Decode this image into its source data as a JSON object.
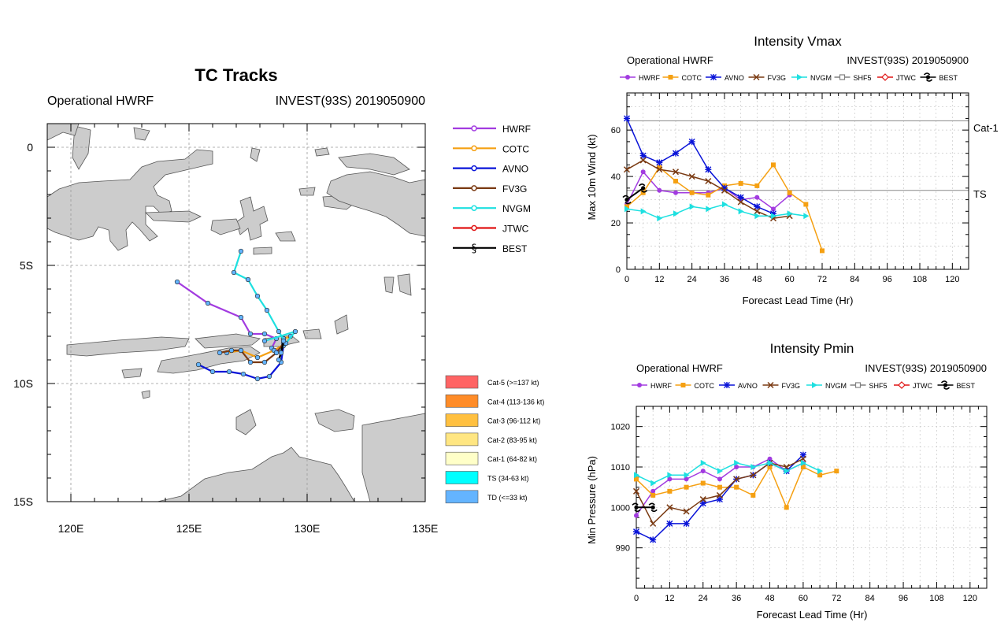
{
  "colors": {
    "HWRF": "#a23be0",
    "COTC": "#f5a012",
    "AVNO": "#0a14d8",
    "FV3G": "#7a3a12",
    "NVGM": "#1de0e0",
    "SHF5": "#808080",
    "JTWC": "#e01414",
    "BEST": "#000000",
    "land": "#cccccc"
  },
  "track_panel": {
    "title": "TC Tracks",
    "left_label": "Operational HWRF",
    "right_label": "INVEST(93S) 2019050900",
    "lat_ticks": [
      "0",
      "5S",
      "10S",
      "15S"
    ],
    "lon_ticks": [
      "120E",
      "125E",
      "130E",
      "135E"
    ],
    "legend": [
      "HWRF",
      "COTC",
      "AVNO",
      "FV3G",
      "NVGM",
      "JTWC",
      "BEST"
    ],
    "intensity_legend": [
      {
        "label": "Cat-5 (>=137 kt)",
        "color": "#ff6464"
      },
      {
        "label": "Cat-4 (113-136 kt)",
        "color": "#ff8c28"
      },
      {
        "label": "Cat-3 (96-112 kt)",
        "color": "#ffc040"
      },
      {
        "label": "Cat-2 (83-95 kt)",
        "color": "#ffe682"
      },
      {
        "label": "Cat-1 (64-82 kt)",
        "color": "#ffffc8"
      },
      {
        "label": "TS (34-63 kt)",
        "color": "#00ffff"
      },
      {
        "label": "TD (<=33 kt)",
        "color": "#64b4ff"
      }
    ]
  },
  "vmax_panel": {
    "title": "Intensity Vmax",
    "left_label": "Operational HWRF",
    "right_label": "INVEST(93S) 2019050900",
    "xlabel": "Forecast Lead Time (Hr)",
    "ylabel": "Max 10m Wind (kt)",
    "legend": [
      "HWRF",
      "COTC",
      "AVNO",
      "FV3G",
      "NVGM",
      "SHF5",
      "JTWC",
      "BEST"
    ],
    "ref_lines": [
      {
        "label": "Cat-1",
        "value": 64
      },
      {
        "label": "TS",
        "value": 34
      }
    ]
  },
  "pmin_panel": {
    "title": "Intensity Pmin",
    "left_label": "Operational HWRF",
    "right_label": "INVEST(93S) 2019050900",
    "xlabel": "Forecast Lead Time (Hr)",
    "ylabel": "Min Pressure (hPa)",
    "legend": [
      "HWRF",
      "COTC",
      "AVNO",
      "FV3G",
      "NVGM",
      "SHF5",
      "JTWC",
      "BEST"
    ]
  },
  "chart_data": [
    {
      "type": "scatter",
      "title": "TC Tracks",
      "xlim": [
        119,
        135
      ],
      "ylim": [
        -15,
        1
      ],
      "x_ticks": [
        120,
        125,
        130,
        135
      ],
      "y_ticks": [
        0,
        -5,
        -10,
        -15
      ],
      "series": [
        {
          "name": "HWRF",
          "points": [
            [
              124.5,
              -5.7
            ],
            [
              125.8,
              -6.6
            ],
            [
              127.2,
              -7.2
            ],
            [
              127.6,
              -7.9
            ],
            [
              128.2,
              -7.9
            ],
            [
              128.7,
              -8.1
            ],
            [
              128.5,
              -8.5
            ],
            [
              128.9,
              -8.6
            ]
          ]
        },
        {
          "name": "COTC",
          "points": [
            [
              126.6,
              -8.7
            ],
            [
              127.2,
              -8.6
            ],
            [
              127.9,
              -8.9
            ],
            [
              128.6,
              -8.6
            ],
            [
              129.1,
              -8.3
            ],
            [
              129.3,
              -8.0
            ],
            [
              129.0,
              -8.1
            ]
          ]
        },
        {
          "name": "AVNO",
          "points": [
            [
              125.4,
              -9.2
            ],
            [
              126.0,
              -9.5
            ],
            [
              126.7,
              -9.5
            ],
            [
              127.3,
              -9.6
            ],
            [
              127.9,
              -9.8
            ],
            [
              128.4,
              -9.7
            ],
            [
              128.9,
              -9.1
            ],
            [
              129.0,
              -8.4
            ]
          ]
        },
        {
          "name": "FV3G",
          "points": [
            [
              126.3,
              -8.7
            ],
            [
              126.8,
              -8.6
            ],
            [
              127.2,
              -8.6
            ],
            [
              127.6,
              -9.1
            ],
            [
              128.2,
              -9.1
            ],
            [
              128.7,
              -8.7
            ],
            [
              129.0,
              -8.3
            ]
          ]
        },
        {
          "name": "NVGM",
          "points": [
            [
              127.2,
              -4.4
            ],
            [
              126.9,
              -5.3
            ],
            [
              127.5,
              -5.6
            ],
            [
              127.9,
              -6.3
            ],
            [
              128.3,
              -6.9
            ],
            [
              128.8,
              -7.8
            ],
            [
              129.1,
              -8.3
            ],
            [
              129.5,
              -7.8
            ],
            [
              128.2,
              -8.2
            ]
          ]
        },
        {
          "name": "BEST",
          "points": [
            [
              128.8,
              -9.0
            ],
            [
              128.9,
              -8.7
            ],
            [
              129.0,
              -8.2
            ]
          ]
        }
      ]
    },
    {
      "type": "line",
      "title": "Intensity Vmax",
      "xlabel": "Forecast Lead Time (Hr)",
      "ylabel": "Max 10m Wind (kt)",
      "xlim": [
        0,
        126
      ],
      "ylim": [
        0,
        76
      ],
      "x_ticks": [
        0,
        12,
        24,
        36,
        48,
        60,
        72,
        84,
        96,
        108,
        120
      ],
      "y_ticks": [
        0,
        20,
        40,
        60
      ],
      "x": [
        0,
        6,
        12,
        18,
        24,
        30,
        36,
        42,
        48,
        54,
        60,
        66,
        72
      ],
      "series": [
        {
          "name": "HWRF",
          "values": [
            28,
            42,
            34,
            33,
            33,
            33,
            35,
            30,
            31,
            26,
            32,
            null,
            null
          ]
        },
        {
          "name": "COTC",
          "values": [
            27,
            33,
            44,
            38,
            33,
            32,
            36,
            37,
            36,
            45,
            33,
            28,
            8
          ]
        },
        {
          "name": "AVNO",
          "values": [
            65,
            49,
            46,
            50,
            55,
            43,
            35,
            31,
            27,
            24,
            null,
            null,
            null
          ]
        },
        {
          "name": "FV3G",
          "values": [
            43,
            47,
            43,
            42,
            40,
            38,
            34,
            29,
            25,
            22,
            23,
            null,
            null
          ]
        },
        {
          "name": "NVGM",
          "values": [
            26,
            25,
            22,
            24,
            27,
            26,
            28,
            25,
            23,
            23,
            24,
            23,
            null
          ]
        },
        {
          "name": "BEST",
          "values": [
            30,
            35,
            null,
            null,
            null,
            null,
            null,
            null,
            null,
            null,
            null,
            null,
            null
          ]
        }
      ]
    },
    {
      "type": "line",
      "title": "Intensity Pmin",
      "xlabel": "Forecast Lead Time (Hr)",
      "ylabel": "Min Pressure (hPa)",
      "xlim": [
        0,
        126
      ],
      "ylim": [
        980,
        1025
      ],
      "x_ticks": [
        0,
        12,
        24,
        36,
        48,
        60,
        72,
        84,
        96,
        108,
        120
      ],
      "y_ticks": [
        990,
        1000,
        1010,
        1020
      ],
      "x": [
        0,
        6,
        12,
        18,
        24,
        30,
        36,
        42,
        48,
        54,
        60,
        66,
        72
      ],
      "series": [
        {
          "name": "HWRF",
          "values": [
            998,
            1004,
            1007,
            1007,
            1009,
            1007,
            1010,
            1010,
            1012,
            1009,
            1011,
            null,
            null
          ]
        },
        {
          "name": "COTC",
          "values": [
            1007,
            1003,
            1004,
            1005,
            1006,
            1005,
            1005,
            1003,
            1010,
            1000,
            1010,
            1008,
            1009
          ]
        },
        {
          "name": "AVNO",
          "values": [
            994,
            992,
            996,
            996,
            1001,
            1002,
            1007,
            1008,
            1011,
            1009,
            1013,
            null,
            null
          ]
        },
        {
          "name": "FV3G",
          "values": [
            1004,
            996,
            1000,
            999,
            1002,
            1003,
            1007,
            1008,
            1011,
            1010,
            1012,
            null,
            null
          ]
        },
        {
          "name": "NVGM",
          "values": [
            1008,
            1006,
            1008,
            1008,
            1011,
            1009,
            1011,
            1010,
            1011,
            1009,
            1011,
            1009,
            null
          ]
        },
        {
          "name": "BEST",
          "values": [
            1000,
            1000,
            null,
            null,
            null,
            null,
            null,
            null,
            null,
            null,
            null,
            null,
            null
          ]
        }
      ]
    }
  ]
}
